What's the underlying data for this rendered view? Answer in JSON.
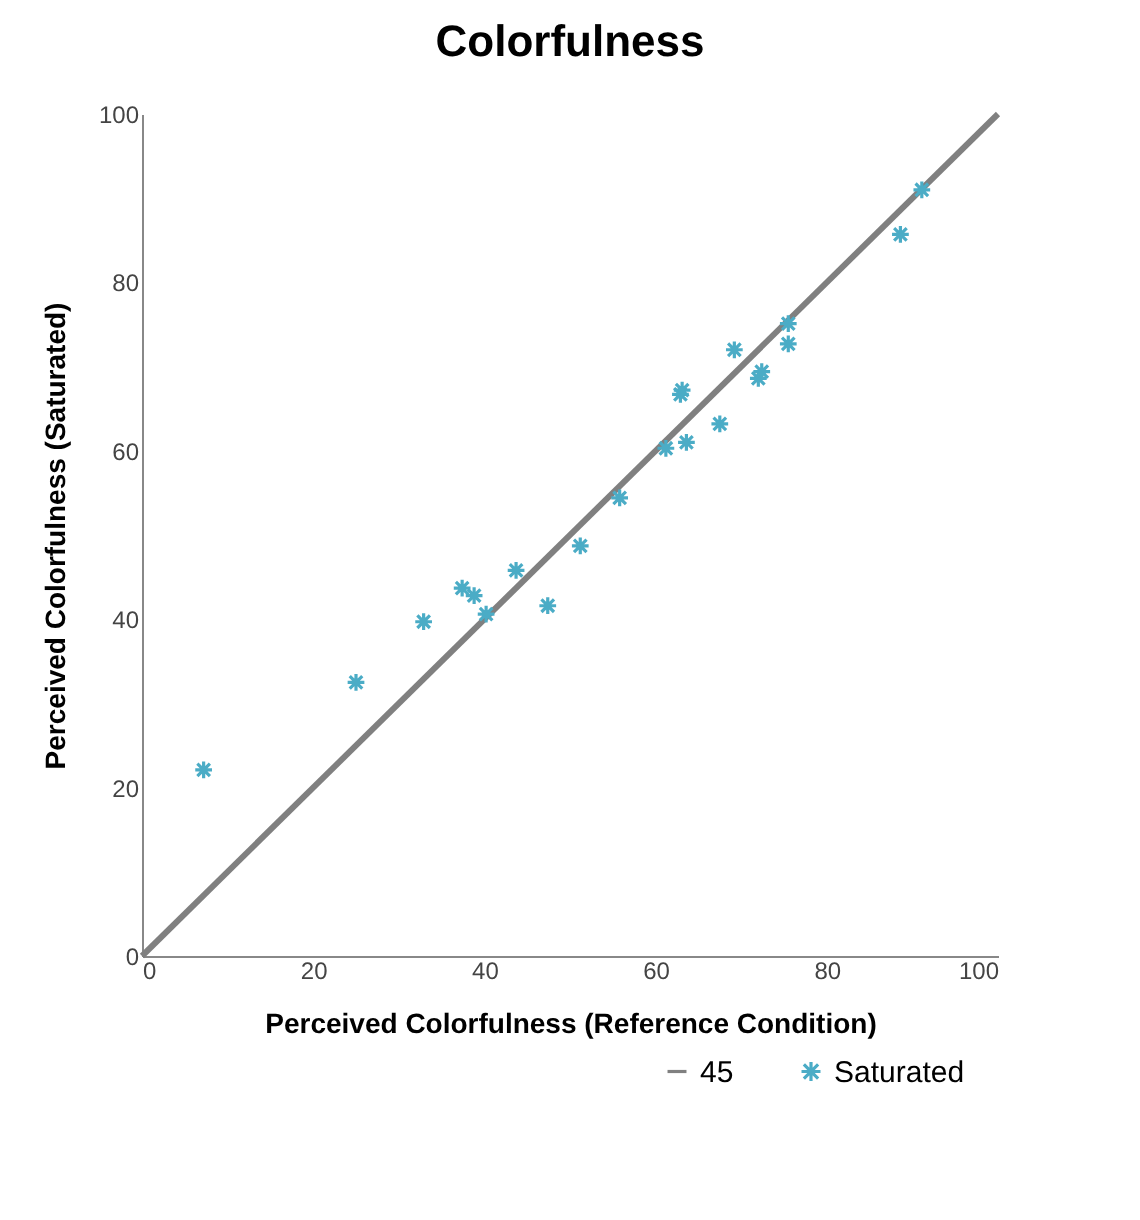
{
  "chart_data": {
    "type": "scatter",
    "title": "Colorfulness",
    "xlabel": "Perceived Colorfulness  (Reference Condition)",
    "ylabel": "Perceived Colorfulness  (Saturated)",
    "xlim": [
      0,
      100
    ],
    "ylim": [
      0,
      100
    ],
    "xticks": [
      0,
      20,
      40,
      60,
      80,
      100
    ],
    "yticks": [
      0,
      20,
      40,
      60,
      80,
      100
    ],
    "grid": false,
    "legend": "bottom right",
    "series": [
      {
        "name": "45",
        "type": "line",
        "color": "#808080",
        "line_style": "solid",
        "x": [
          0,
          100
        ],
        "values": [
          0,
          100
        ]
      },
      {
        "name": "Saturated",
        "color": "#4bacc6",
        "marker": "cross",
        "x": [
          7.2,
          25.0,
          32.9,
          37.4,
          38.8,
          40.2,
          43.7,
          47.4,
          51.2,
          55.8,
          61.2,
          63.6,
          62.9,
          63.1,
          67.5,
          72.0,
          72.4,
          69.2,
          75.5,
          75.5,
          88.6,
          91.1
        ],
        "values": [
          22.1,
          32.5,
          39.7,
          43.7,
          42.8,
          40.6,
          45.8,
          41.6,
          48.7,
          54.4,
          60.3,
          61.0,
          66.7,
          67.2,
          63.2,
          68.6,
          69.4,
          72.0,
          72.7,
          75.1,
          85.7,
          91.0
        ]
      }
    ]
  }
}
